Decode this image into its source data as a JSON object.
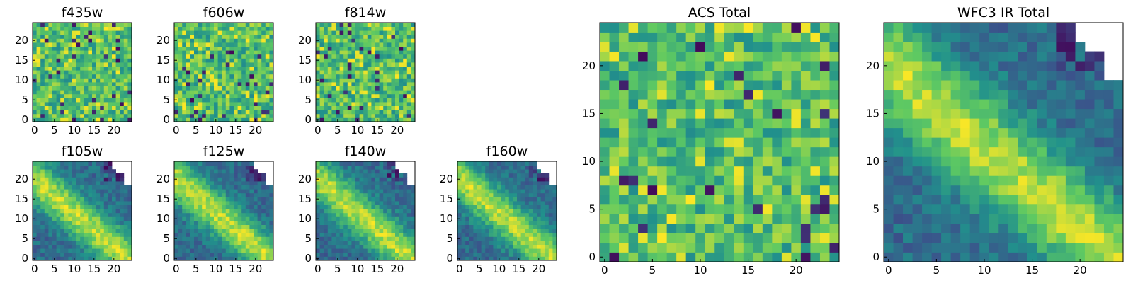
{
  "chart_data": [
    {
      "type": "heatmap",
      "title": "f435w",
      "size": 25,
      "nan_region": "none",
      "xlim": [
        0,
        24
      ],
      "ylim": [
        0,
        24
      ],
      "xticks": [
        "0",
        "5",
        "10",
        "15",
        "20"
      ],
      "yticks": [
        "0",
        "5",
        "10",
        "15",
        "20"
      ],
      "pattern": "noise",
      "seed": 11,
      "colormap": "viridis",
      "value_range": [
        0,
        1
      ]
    },
    {
      "type": "heatmap",
      "title": "f606w",
      "size": 25,
      "nan_region": "none",
      "xlim": [
        0,
        24
      ],
      "ylim": [
        0,
        24
      ],
      "xticks": [
        "0",
        "5",
        "10",
        "15",
        "20"
      ],
      "yticks": [
        "0",
        "5",
        "10",
        "15",
        "20"
      ],
      "pattern": "noise",
      "seed": 23,
      "colormap": "viridis",
      "value_range": [
        0,
        1
      ]
    },
    {
      "type": "heatmap",
      "title": "f814w",
      "size": 25,
      "nan_region": "none",
      "xlim": [
        0,
        24
      ],
      "ylim": [
        0,
        24
      ],
      "xticks": [
        "0",
        "5",
        "10",
        "15",
        "20"
      ],
      "yticks": [
        "0",
        "5",
        "10",
        "15",
        "20"
      ],
      "pattern": "noise",
      "seed": 37,
      "colormap": "viridis",
      "value_range": [
        0,
        1
      ]
    },
    {
      "type": "heatmap",
      "title": "f105w",
      "size": 25,
      "nan_region": "top-right corner",
      "xlim": [
        0,
        24
      ],
      "ylim": [
        0,
        24
      ],
      "xticks": [
        "0",
        "5",
        "10",
        "15",
        "20"
      ],
      "yticks": [
        "0",
        "5",
        "10",
        "15",
        "20"
      ],
      "pattern": "diagonal-ridge",
      "seed": 41,
      "colormap": "viridis",
      "value_range": [
        0,
        1
      ]
    },
    {
      "type": "heatmap",
      "title": "f125w",
      "size": 25,
      "nan_region": "top-right corner",
      "xlim": [
        0,
        24
      ],
      "ylim": [
        0,
        24
      ],
      "xticks": [
        "0",
        "5",
        "10",
        "15",
        "20"
      ],
      "yticks": [
        "0",
        "5",
        "10",
        "15",
        "20"
      ],
      "pattern": "diagonal-ridge",
      "seed": 53,
      "colormap": "viridis",
      "value_range": [
        0,
        1
      ]
    },
    {
      "type": "heatmap",
      "title": "f140w",
      "size": 25,
      "nan_region": "top-right corner",
      "xlim": [
        0,
        24
      ],
      "ylim": [
        0,
        24
      ],
      "xticks": [
        "0",
        "5",
        "10",
        "15",
        "20"
      ],
      "yticks": [
        "0",
        "5",
        "10",
        "15",
        "20"
      ],
      "pattern": "diagonal-ridge",
      "seed": 67,
      "colormap": "viridis",
      "value_range": [
        0,
        1
      ]
    },
    {
      "type": "heatmap",
      "title": "f160w",
      "size": 25,
      "nan_region": "top-right corner",
      "xlim": [
        0,
        24
      ],
      "ylim": [
        0,
        24
      ],
      "xticks": [
        "0",
        "5",
        "10",
        "15",
        "20"
      ],
      "yticks": [
        "0",
        "5",
        "10",
        "15",
        "20"
      ],
      "pattern": "diagonal-ridge",
      "seed": 79,
      "colormap": "viridis",
      "value_range": [
        0,
        1
      ]
    },
    {
      "type": "heatmap",
      "title": "ACS Total",
      "size": 25,
      "nan_region": "none",
      "xlim": [
        0,
        24
      ],
      "ylim": [
        0,
        24
      ],
      "xticks": [
        "0",
        "5",
        "10",
        "15",
        "20"
      ],
      "yticks": [
        "0",
        "5",
        "10",
        "15",
        "20"
      ],
      "pattern": "noise",
      "seed": 97,
      "colormap": "viridis",
      "value_range": [
        0,
        1
      ]
    },
    {
      "type": "heatmap",
      "title": "WFC3 IR Total",
      "size": 25,
      "nan_region": "top-right corner",
      "xlim": [
        0,
        24
      ],
      "ylim": [
        0,
        24
      ],
      "xticks": [
        "0",
        "5",
        "10",
        "15",
        "20"
      ],
      "yticks": [
        "0",
        "5",
        "10",
        "15",
        "20"
      ],
      "pattern": "diagonal-ridge",
      "seed": 101,
      "colormap": "viridis",
      "value_range": [
        0,
        1
      ]
    }
  ]
}
